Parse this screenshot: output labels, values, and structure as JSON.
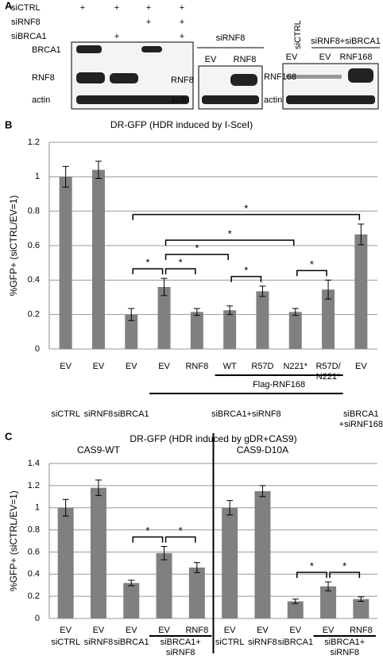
{
  "panel_a": {
    "panel_label": "A",
    "conditions": [
      {
        "name": "siCTRL",
        "marks": [
          "+",
          "+",
          "+",
          "+"
        ]
      },
      {
        "name": "siRNF8",
        "marks": [
          null,
          null,
          "+",
          "+"
        ]
      },
      {
        "name": "siBRCA1",
        "marks": [
          null,
          "+",
          null,
          "+"
        ]
      }
    ],
    "blot1": {
      "rows": [
        "BRCA1",
        "RNF8",
        "actin"
      ]
    },
    "blot2": {
      "header": "siRNF8",
      "lanes": [
        "EV",
        "RNF8"
      ],
      "rows": [
        "RNF8",
        "actin"
      ]
    },
    "blot3": {
      "header_rotated": "siCTRL",
      "header": "siRNF8+siBRCA1",
      "lanes": [
        "EV",
        "EV",
        "RNF168"
      ],
      "rows": [
        "RNF168",
        "actin"
      ]
    }
  },
  "chart_data": [
    {
      "type": "bar",
      "panel_label": "B",
      "title": "DR-GFP (HDR induced by I-SceI)",
      "y_label": "%GFP+ (siCTRL/EV=1)",
      "categories": [
        "EV",
        "EV",
        "EV",
        "EV",
        "RNF8",
        "WT",
        "R57D",
        "N221*",
        [
          "R57D/",
          "N221*"
        ],
        "EV"
      ],
      "values": [
        1.0,
        1.04,
        0.2,
        0.36,
        0.215,
        0.225,
        0.335,
        0.215,
        0.345,
        0.665
      ],
      "errors": [
        0.06,
        0.05,
        0.035,
        0.05,
        0.02,
        0.025,
        0.03,
        0.02,
        0.055,
        0.06
      ],
      "color": "#808080",
      "ylim": [
        0,
        1.2
      ],
      "yticks": [
        0,
        0.2,
        0.4,
        0.6,
        0.8,
        1,
        1.2
      ],
      "grid": true,
      "groups": [
        {
          "label": "siCTRL",
          "from": 0,
          "to": 0,
          "line": false
        },
        {
          "label": "siRNF8",
          "from": 1,
          "to": 1,
          "line": false
        },
        {
          "label": "siBRCA1",
          "from": 2,
          "to": 2,
          "line": false
        },
        {
          "label": "siBRCA1+siRNF8",
          "from": 3,
          "to": 8,
          "line": true
        },
        {
          "label": "Flag-RNF168",
          "from": 5,
          "to": 8,
          "line": true
        },
        {
          "label": [
            "siBRCA1",
            "+siRNF168"
          ],
          "from": 9,
          "to": 9,
          "line": false
        }
      ],
      "annotations": [
        {
          "text": "*",
          "from": 2,
          "to": 9
        },
        {
          "text": "*",
          "from": 3,
          "to": 7
        },
        {
          "text": "*",
          "from": 3,
          "to": 5
        },
        {
          "text": "*",
          "from": 2,
          "to": 3
        },
        {
          "text": "*",
          "from": 3,
          "to": 4
        },
        {
          "text": "*",
          "from": 5,
          "to": 6
        },
        {
          "text": "*",
          "from": 7,
          "to": 8
        }
      ]
    },
    {
      "type": "bar",
      "panel_label": "C",
      "title": "DR-GFP (HDR induced by gDR+CAS9)",
      "y_label": "%GFP+ (siCTRL/EV=1)",
      "categories": [
        "EV",
        "EV",
        "EV",
        "EV",
        "RNF8",
        "EV",
        "EV",
        "EV",
        "EV",
        "RNF8"
      ],
      "values": [
        1.0,
        1.18,
        0.32,
        0.59,
        0.46,
        1.0,
        1.15,
        0.155,
        0.29,
        0.175
      ],
      "errors": [
        0.075,
        0.07,
        0.025,
        0.06,
        0.045,
        0.065,
        0.05,
        0.02,
        0.04,
        0.02
      ],
      "color": "#808080",
      "ylim": [
        0,
        1.4
      ],
      "yticks": [
        0,
        0.2,
        0.4,
        0.6,
        0.8,
        1,
        1.2,
        1.4
      ],
      "grid": true,
      "sections": [
        {
          "label": "CAS9-WT",
          "from": 0,
          "to": 4
        },
        {
          "label": "CAS9-D10A",
          "from": 5,
          "to": 9
        }
      ],
      "groups": [
        {
          "label": "siCTRL",
          "from": 0,
          "to": 0,
          "line": false
        },
        {
          "label": "siRNF8",
          "from": 1,
          "to": 1,
          "line": false
        },
        {
          "label": "siBRCA1",
          "from": 2,
          "to": 2,
          "line": false
        },
        {
          "label": [
            "siBRCA1+",
            "siRNF8"
          ],
          "from": 3,
          "to": 4,
          "line": true
        },
        {
          "label": "siCTRL",
          "from": 5,
          "to": 5,
          "line": false
        },
        {
          "label": "siRNF8",
          "from": 6,
          "to": 6,
          "line": false
        },
        {
          "label": "siBRCA1",
          "from": 7,
          "to": 7,
          "line": false
        },
        {
          "label": [
            "siBRCA1+",
            "siRNF8"
          ],
          "from": 8,
          "to": 9,
          "line": true
        }
      ],
      "annotations": [
        {
          "text": "*",
          "from": 2,
          "to": 3
        },
        {
          "text": "*",
          "from": 3,
          "to": 4
        },
        {
          "text": "*",
          "from": 7,
          "to": 8
        },
        {
          "text": "*",
          "from": 8,
          "to": 9
        }
      ]
    }
  ]
}
